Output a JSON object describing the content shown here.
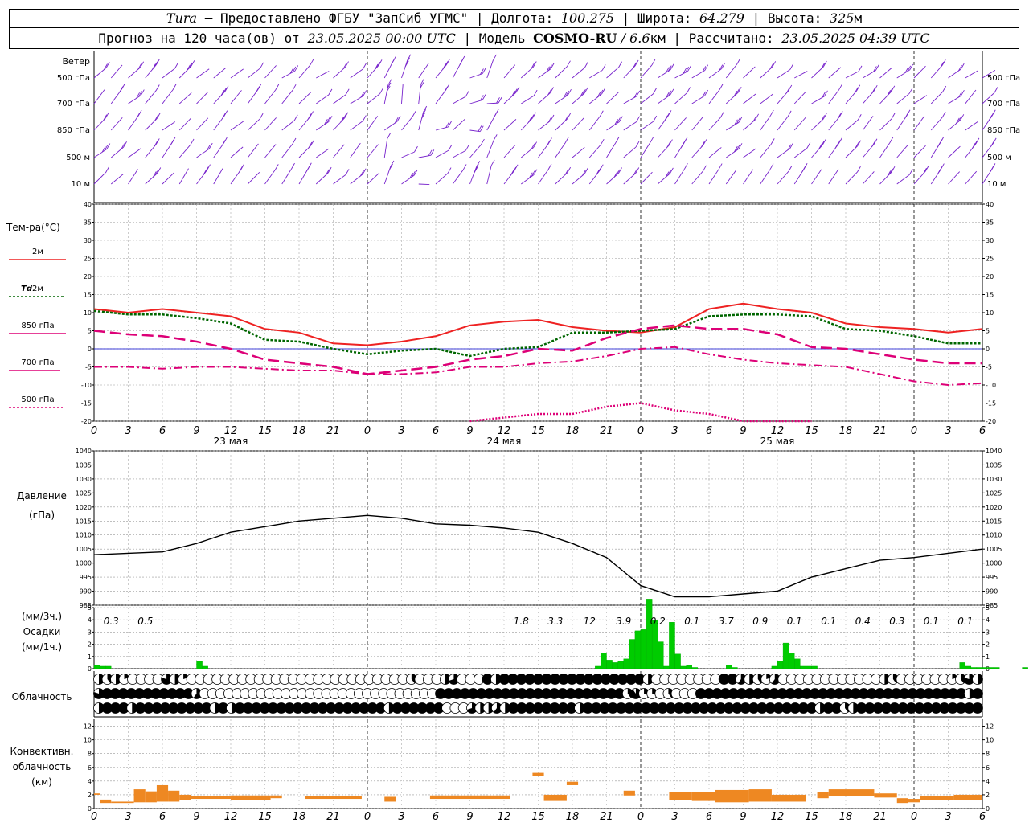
{
  "header": {
    "station": "Tura",
    "provided_by": " — Предоставлено ФГБУ \"ЗапСиб УГМС\" | Долгота: ",
    "lon": "100.275",
    "lat_label": " | Широта: ",
    "lat": "64.279",
    "alt_label": " | Высота: ",
    "alt": "325",
    "alt_unit": "м",
    "forecast_label": "Прогноз на 120 часа(ов) от ",
    "forecast_from": "23.05.2025 00:00 UTC",
    "model_label": " | Модель ",
    "model": "COSMO-RU",
    "model_res": " / 6.6",
    "model_res_unit": "км",
    "calc_label": " | Рассчитано: ",
    "calc_time": "23.05.2025 04:39 UTC"
  },
  "labels": {
    "wind": "Ветер",
    "wind_levels": [
      "500 гПа",
      "700 гПа",
      "850 гПа",
      "500 м",
      "10  м"
    ],
    "temp": "Тем-ра(°C)",
    "t2m": "2м",
    "td2m_a": "Td",
    "td2m_b": " 2м",
    "t850": "850 гПа",
    "t700": "700 гПа",
    "t500": "500 гПа",
    "pressure": "Давление",
    "pressure_unit": "(гПа)",
    "precip1": "(мм/3ч.)",
    "precip2": "Осадки",
    "precip3": "(мм/1ч.)",
    "clouds": "Облачность",
    "conv1": "Конвективн.",
    "conv2": "облачность",
    "conv3": "(км)"
  },
  "colors": {
    "t2m": "#ee2222",
    "td2m": "#006600",
    "t850": "#dd0077",
    "t700": "#dd0077",
    "t500": "#dd0077",
    "wind": "#7722cc",
    "precip": "#00cc00",
    "conv": "#ee8822",
    "zero_line": "#0000cc"
  },
  "chart_data": [
    {
      "type": "line",
      "name": "temperature",
      "x_ticks": [
        "0",
        "3",
        "6",
        "9",
        "12",
        "15",
        "18",
        "21",
        "0",
        "3",
        "6",
        "9",
        "12",
        "15",
        "18",
        "21",
        "0",
        "3",
        "6",
        "9",
        "12",
        "15",
        "18",
        "21",
        "0",
        "3",
        "6"
      ],
      "day_labels": [
        "23 мая",
        "24 мая",
        "25 мая"
      ],
      "ylim": [
        -20,
        40
      ],
      "y_ticks": [
        -20,
        -15,
        -10,
        -5,
        0,
        5,
        10,
        15,
        20,
        25,
        30,
        35,
        40
      ],
      "x_hours": [
        0,
        3,
        6,
        9,
        12,
        15,
        18,
        21,
        24,
        27,
        30,
        33,
        36,
        39,
        42,
        45,
        48,
        51,
        54,
        57,
        60,
        63,
        66,
        69,
        72,
        75,
        78
      ],
      "series": [
        {
          "name": "2м",
          "values": [
            11,
            10,
            11,
            10,
            9,
            5.5,
            4.5,
            1.5,
            1,
            2,
            3.5,
            6.5,
            7.5,
            8,
            6,
            5,
            4.5,
            6,
            11,
            12.5,
            11,
            10,
            7,
            6,
            5.5,
            4.5,
            5.5
          ]
        },
        {
          "name": "Td 2м",
          "values": [
            10.5,
            9.5,
            9.5,
            8.5,
            7,
            2.5,
            2,
            0,
            -1.5,
            -0.5,
            0,
            -2,
            0,
            0.5,
            4.5,
            4.5,
            5,
            5.5,
            9,
            9.5,
            9.5,
            9,
            5.5,
            5,
            3.5,
            1.5,
            1.5
          ]
        },
        {
          "name": "850 гПа",
          "values": [
            5,
            4,
            3.5,
            2,
            0,
            -3,
            -4,
            -5,
            -7,
            -6,
            -5,
            -3,
            -2,
            0,
            -0.5,
            3,
            5.5,
            6.5,
            5.5,
            5.5,
            4,
            0.5,
            0,
            -1.5,
            -3,
            -4,
            -4
          ]
        },
        {
          "name": "700 гПа",
          "values": [
            -5,
            -5,
            -5.5,
            -5,
            -5,
            -5.5,
            -6,
            -6,
            -7,
            -7,
            -6.5,
            -5,
            -5,
            -4,
            -3.5,
            -2,
            0,
            0.5,
            -1.5,
            -3,
            -4,
            -4.5,
            -5,
            -7,
            -9,
            -10,
            -9.5
          ]
        },
        {
          "name": "500 гПа",
          "values": [
            null,
            null,
            null,
            null,
            null,
            null,
            null,
            null,
            null,
            null,
            null,
            -20,
            -19,
            -18,
            -18,
            -16,
            -15,
            -17,
            -18,
            -20,
            -20,
            -20,
            null,
            null,
            null,
            null,
            null
          ]
        }
      ]
    },
    {
      "type": "line",
      "name": "pressure",
      "ylim": [
        985,
        1040
      ],
      "y_ticks": [
        985,
        990,
        995,
        1000,
        1005,
        1010,
        1015,
        1020,
        1025,
        1030,
        1035,
        1040
      ],
      "x_hours": [
        0,
        3,
        6,
        9,
        12,
        15,
        18,
        21,
        24,
        27,
        30,
        33,
        36,
        39,
        42,
        45,
        48,
        51,
        54,
        57,
        60,
        63,
        66,
        69,
        72,
        75,
        78
      ],
      "values": [
        1003,
        1003.5,
        1004,
        1007,
        1011,
        1013,
        1015,
        1016,
        1017,
        1016,
        1014,
        1013.5,
        1012.5,
        1011,
        1007,
        1002,
        992,
        988,
        988,
        989,
        990,
        995,
        998,
        1001,
        1002,
        1003.5,
        1005
      ]
    },
    {
      "type": "bar",
      "name": "precipitation",
      "unit": "мм/1ч",
      "ylim": [
        0,
        5
      ],
      "y_ticks": [
        0,
        1,
        2,
        3,
        4,
        5
      ],
      "hourly": [
        0.3,
        0.2,
        0.2,
        0,
        0,
        0,
        0,
        0,
        0,
        0,
        0,
        0,
        0,
        0,
        0,
        0,
        0,
        0,
        0.6,
        0.2,
        0,
        0,
        0,
        0,
        0,
        0,
        0,
        0,
        0,
        0,
        0,
        0,
        0,
        0,
        0,
        0,
        0,
        0,
        0,
        0,
        0,
        0,
        0,
        0,
        0,
        0,
        0,
        0,
        0,
        0,
        0,
        0,
        0,
        0,
        0,
        0,
        0,
        0,
        0,
        0,
        0,
        0,
        0,
        0,
        0,
        0,
        0,
        0,
        0,
        0,
        0,
        0,
        0,
        0,
        0,
        0,
        0,
        0,
        0,
        0,
        0,
        0,
        0,
        0,
        0,
        0,
        0,
        0,
        0.2,
        1.3,
        0.7,
        0.5,
        0.6,
        0.8,
        2.4,
        3.1,
        3.2,
        5.7,
        4.0,
        2.2,
        0.2,
        3.8,
        1.2,
        0.2,
        0.3,
        0.1,
        0,
        0,
        0,
        0,
        0,
        0.3,
        0.1,
        0,
        0,
        0,
        0,
        0,
        0,
        0.2,
        0.6,
        2.1,
        1.3,
        0.8,
        0.2,
        0.2,
        0.2,
        0,
        0,
        0,
        0,
        0,
        0,
        0,
        0,
        0,
        0,
        0,
        0,
        0,
        0,
        0,
        0,
        0,
        0,
        0,
        0,
        0,
        0,
        0,
        0,
        0,
        0.5,
        0.2,
        0.1,
        0.1,
        0.1,
        0.1,
        0.1,
        0,
        0,
        0,
        0,
        0.1,
        0,
        0,
        0.1,
        0.1,
        0.1,
        0.1
      ],
      "three_hour_labels": [
        {
          "hour": 1.5,
          "text": "0.3"
        },
        {
          "hour": 4.5,
          "text": "0.5"
        },
        {
          "hour": 37.5,
          "text": "1.8"
        },
        {
          "hour": 40.5,
          "text": "3.3"
        },
        {
          "hour": 43.5,
          "text": "12"
        },
        {
          "hour": 46.5,
          "text": "3.9"
        },
        {
          "hour": 49.5,
          "text": "0.2"
        },
        {
          "hour": 52.5,
          "text": "0.1"
        },
        {
          "hour": 55.5,
          "text": "3.7"
        },
        {
          "hour": 58.5,
          "text": "0.9"
        },
        {
          "hour": 61.5,
          "text": "0.1"
        },
        {
          "hour": 64.5,
          "text": "0.1"
        },
        {
          "hour": 67.5,
          "text": "0.4"
        },
        {
          "hour": 70.5,
          "text": "0.3"
        },
        {
          "hour": 73.5,
          "text": "0.1"
        },
        {
          "hour": 76.5,
          "text": "0.1"
        }
      ]
    },
    {
      "type": "bar",
      "name": "convective_cloud",
      "unit": "км",
      "ylim": [
        0,
        13
      ],
      "y_ticks": [
        0,
        2,
        4,
        6,
        8,
        10,
        12
      ],
      "segments": [
        {
          "h0": 0,
          "h1": 0.5,
          "top": 2.2,
          "base": 2
        },
        {
          "h0": 0.5,
          "h1": 1.5,
          "top": 1.3,
          "base": 0.8
        },
        {
          "h0": 1.5,
          "h1": 3.5,
          "top": 1,
          "base": 0.8
        },
        {
          "h0": 3.5,
          "h1": 4.5,
          "top": 2.8,
          "base": 0.9
        },
        {
          "h0": 4.5,
          "h1": 5.5,
          "top": 2.5,
          "base": 0.9
        },
        {
          "h0": 5.5,
          "h1": 6.5,
          "top": 3.4,
          "base": 1
        },
        {
          "h0": 6.5,
          "h1": 7.5,
          "top": 2.6,
          "base": 1
        },
        {
          "h0": 7.5,
          "h1": 8.5,
          "top": 2,
          "base": 1.2
        },
        {
          "h0": 8.5,
          "h1": 12,
          "top": 1.8,
          "base": 1.4
        },
        {
          "h0": 12,
          "h1": 15.5,
          "top": 1.9,
          "base": 1.2
        },
        {
          "h0": 15.5,
          "h1": 16.5,
          "top": 1.9,
          "base": 1.5
        },
        {
          "h0": 18.5,
          "h1": 23.5,
          "top": 1.8,
          "base": 1.4
        },
        {
          "h0": 25.5,
          "h1": 26.5,
          "top": 1.7,
          "base": 1
        },
        {
          "h0": 29.5,
          "h1": 36.5,
          "top": 1.9,
          "base": 1.4
        },
        {
          "h0": 38.5,
          "h1": 39.5,
          "top": 5.2,
          "base": 4.7
        },
        {
          "h0": 39.5,
          "h1": 41.5,
          "top": 2,
          "base": 1.1
        },
        {
          "h0": 41.5,
          "h1": 42.5,
          "top": 3.9,
          "base": 3.4
        },
        {
          "h0": 46.5,
          "h1": 47.5,
          "top": 2.6,
          "base": 1.9
        },
        {
          "h0": 50.5,
          "h1": 52.5,
          "top": 2.4,
          "base": 1.2
        },
        {
          "h0": 52.5,
          "h1": 54.5,
          "top": 2.4,
          "base": 1.1
        },
        {
          "h0": 54.5,
          "h1": 57.5,
          "top": 2.7,
          "base": 0.9
        },
        {
          "h0": 57.5,
          "h1": 59.5,
          "top": 2.8,
          "base": 1
        },
        {
          "h0": 59.5,
          "h1": 62.5,
          "top": 2,
          "base": 1
        },
        {
          "h0": 63.5,
          "h1": 64.5,
          "top": 2.4,
          "base": 1.5
        },
        {
          "h0": 64.5,
          "h1": 68.5,
          "top": 2.8,
          "base": 1.8
        },
        {
          "h0": 68.5,
          "h1": 70.5,
          "top": 2.2,
          "base": 1.6
        },
        {
          "h0": 70.5,
          "h1": 71.5,
          "top": 1.5,
          "base": 0.8
        },
        {
          "h0": 71.5,
          "h1": 72.5,
          "top": 1.4,
          "base": 0.9
        },
        {
          "h0": 72.5,
          "h1": 75.5,
          "top": 1.8,
          "base": 1.2
        },
        {
          "h0": 75.5,
          "h1": 78,
          "top": 2,
          "base": 1.2
        }
      ]
    },
    {
      "type": "table",
      "name": "cloudiness",
      "note": "Cloud cover symbols per hour, 3 rows (upper/middle/lower); values in octas fraction 0-1",
      "rows": [
        [
          0.5,
          0.4,
          0.5,
          0.2,
          0,
          0,
          0,
          0,
          0.8,
          0.5,
          0.2,
          0,
          0,
          0,
          0,
          0,
          0,
          0,
          0,
          0,
          0,
          0,
          0,
          0,
          0,
          0,
          0,
          0,
          0,
          0,
          0,
          0,
          0,
          0,
          0,
          0,
          0,
          0.4,
          0,
          0,
          0,
          0.5,
          0.7,
          0,
          0,
          0,
          1,
          0.5,
          1,
          1,
          1,
          1,
          1,
          1,
          1,
          1,
          1,
          1,
          1,
          1,
          1,
          1,
          1,
          1,
          1,
          0.5,
          0,
          0,
          0,
          0,
          0,
          0,
          0,
          0,
          1,
          1,
          0.6,
          0.5,
          0.4,
          0.2,
          0.6,
          0,
          0,
          0,
          0,
          0,
          0,
          0,
          0,
          0,
          0,
          0,
          0,
          0.5,
          0.4,
          0,
          0,
          0,
          0,
          0,
          0,
          0.2,
          0.4,
          0.8,
          0.5
        ],
        [
          0.8,
          1,
          1,
          1,
          1,
          1,
          1,
          1,
          1,
          1,
          1,
          1,
          0.6,
          0,
          0,
          0,
          0,
          0,
          0,
          0,
          0,
          0,
          0,
          0,
          0,
          0,
          0,
          0,
          0,
          0,
          0,
          0,
          0,
          0,
          0,
          0,
          0,
          0,
          0,
          0,
          0,
          0,
          1,
          1,
          1,
          1,
          1,
          1,
          1,
          1,
          1,
          1,
          1,
          1,
          1,
          1,
          1,
          1,
          1,
          1,
          1,
          1,
          1,
          1,
          1,
          0.4,
          0.9,
          0.3,
          0.3,
          0,
          0.4,
          0,
          0,
          0,
          1,
          1,
          1,
          1,
          1,
          1,
          1,
          1,
          1,
          1,
          1,
          1,
          1,
          1,
          1,
          1,
          1,
          1,
          1,
          1,
          1,
          1,
          1,
          1,
          1,
          1,
          1,
          1,
          1,
          1,
          1,
          1,
          1,
          0.5,
          1
        ],
        [
          0.5,
          1,
          1,
          1,
          0.5,
          1,
          1,
          1,
          1,
          1,
          1,
          1,
          1,
          1,
          0.5,
          1,
          0.5,
          1,
          1,
          1,
          1,
          1,
          1,
          1,
          1,
          1,
          1,
          1,
          1,
          1,
          1,
          1,
          1,
          1,
          1,
          0.5,
          1,
          1,
          1,
          1,
          1,
          1,
          0,
          0,
          0,
          0.7,
          0.5,
          0.5,
          0.6,
          0.5,
          1,
          1,
          1,
          1,
          1,
          1,
          1,
          1,
          0.5,
          1,
          1,
          1,
          1,
          1,
          1,
          1,
          1,
          1,
          1,
          1,
          1,
          1,
          1,
          1,
          1,
          1,
          1,
          1,
          1,
          1,
          1,
          1,
          1,
          1,
          1,
          1,
          1,
          0.5,
          1,
          1,
          0.4,
          0.5,
          1,
          1,
          1,
          1,
          1,
          1,
          1,
          1,
          1,
          1,
          1,
          1,
          1,
          1,
          1
        ]
      ]
    }
  ]
}
